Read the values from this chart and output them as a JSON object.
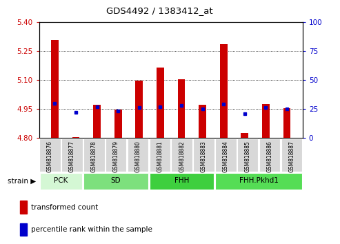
{
  "title": "GDS4492 / 1383412_at",
  "samples": [
    "GSM818876",
    "GSM818877",
    "GSM818878",
    "GSM818879",
    "GSM818880",
    "GSM818881",
    "GSM818882",
    "GSM818883",
    "GSM818884",
    "GSM818885",
    "GSM818886",
    "GSM818887"
  ],
  "red_values": [
    5.305,
    4.805,
    4.97,
    4.945,
    5.095,
    5.165,
    5.105,
    4.97,
    5.285,
    4.825,
    4.975,
    4.955
  ],
  "blue_values": [
    30,
    22,
    27,
    23,
    26,
    27,
    28,
    25,
    29,
    21,
    26,
    25
  ],
  "ylim_left": [
    4.8,
    5.4
  ],
  "ylim_right": [
    0,
    100
  ],
  "yticks_left": [
    4.8,
    4.95,
    5.1,
    5.25,
    5.4
  ],
  "yticks_right": [
    0,
    25,
    50,
    75,
    100
  ],
  "groups": [
    {
      "label": "PCK",
      "start": 0,
      "end": 2,
      "color": "#d4f7d4"
    },
    {
      "label": "SD",
      "start": 2,
      "end": 5,
      "color": "#7de07d"
    },
    {
      "label": "FHH",
      "start": 5,
      "end": 8,
      "color": "#3ecf3e"
    },
    {
      "label": "FHH.Pkhd1",
      "start": 8,
      "end": 12,
      "color": "#55dd55"
    }
  ],
  "bar_color": "#cc0000",
  "dot_color": "#0000cc",
  "bar_width": 0.35,
  "bar_base": 4.8,
  "legend_items": [
    {
      "label": "transformed count",
      "color": "#cc0000"
    },
    {
      "label": "percentile rank within the sample",
      "color": "#0000cc"
    }
  ],
  "left_tick_color": "#cc0000",
  "right_tick_color": "#0000cc",
  "xtick_bg_color": "#d8d8d8",
  "strain_label": "strain"
}
